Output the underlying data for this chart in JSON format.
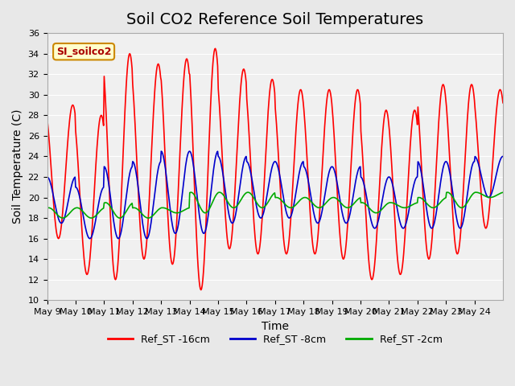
{
  "title": "Soil CO2 Reference Soil Temperatures",
  "xlabel": "Time",
  "ylabel": "Soil Temperature (C)",
  "ylim": [
    10,
    36
  ],
  "yticks": [
    10,
    12,
    14,
    16,
    18,
    20,
    22,
    24,
    26,
    28,
    30,
    32,
    34,
    36
  ],
  "x_tick_labels": [
    "May 9",
    "May 10",
    "May 11",
    "May 12",
    "May 13",
    "May 14",
    "May 15",
    "May 16",
    "May 17",
    "May 18",
    "May 19",
    "May 20",
    "May 21",
    "May 22",
    "May 23",
    "May 24"
  ],
  "legend_labels": [
    "Ref_ST -16cm",
    "Ref_ST -8cm",
    "Ref_ST -2cm"
  ],
  "legend_colors": [
    "#ff0000",
    "#0000cc",
    "#00aa00"
  ],
  "annotation_text": "SI_soilco2",
  "annotation_bg": "#ffffcc",
  "annotation_border": "#cc8800",
  "background_color": "#e8e8e8",
  "plot_bg": "#f0f0f0",
  "title_fontsize": 14,
  "axis_fontsize": 10,
  "tick_fontsize": 8,
  "day_peaks_16": [
    29,
    28,
    34,
    33,
    33.5,
    34.5,
    32.5,
    31.5,
    30.5,
    30.5,
    30.5,
    28.5,
    28.5,
    31,
    31,
    30.5
  ],
  "night_mins_16": [
    16,
    12.5,
    12,
    14,
    13.5,
    11,
    15,
    14.5,
    14.5,
    14.5,
    14,
    12,
    12.5,
    14,
    14.5,
    17
  ],
  "day_peaks_8": [
    22,
    21,
    23,
    23.5,
    24.5,
    24.5,
    24,
    23.5,
    23.5,
    23,
    23,
    22,
    22,
    23.5,
    23.5,
    24
  ],
  "night_mins_8": [
    17.5,
    16,
    16,
    16,
    16.5,
    16.5,
    17.5,
    18,
    18,
    17.5,
    17.5,
    17,
    17,
    17,
    17,
    20
  ],
  "day_peaks_2": [
    19,
    19,
    19.5,
    19,
    19,
    20.5,
    20.5,
    20.5,
    20,
    20,
    20,
    19.5,
    19.5,
    20,
    20.5,
    20.5
  ],
  "night_mins_2": [
    18,
    18,
    18,
    18,
    18.5,
    18.5,
    19,
    19,
    19,
    19,
    19,
    18.5,
    19,
    19,
    19,
    20
  ]
}
